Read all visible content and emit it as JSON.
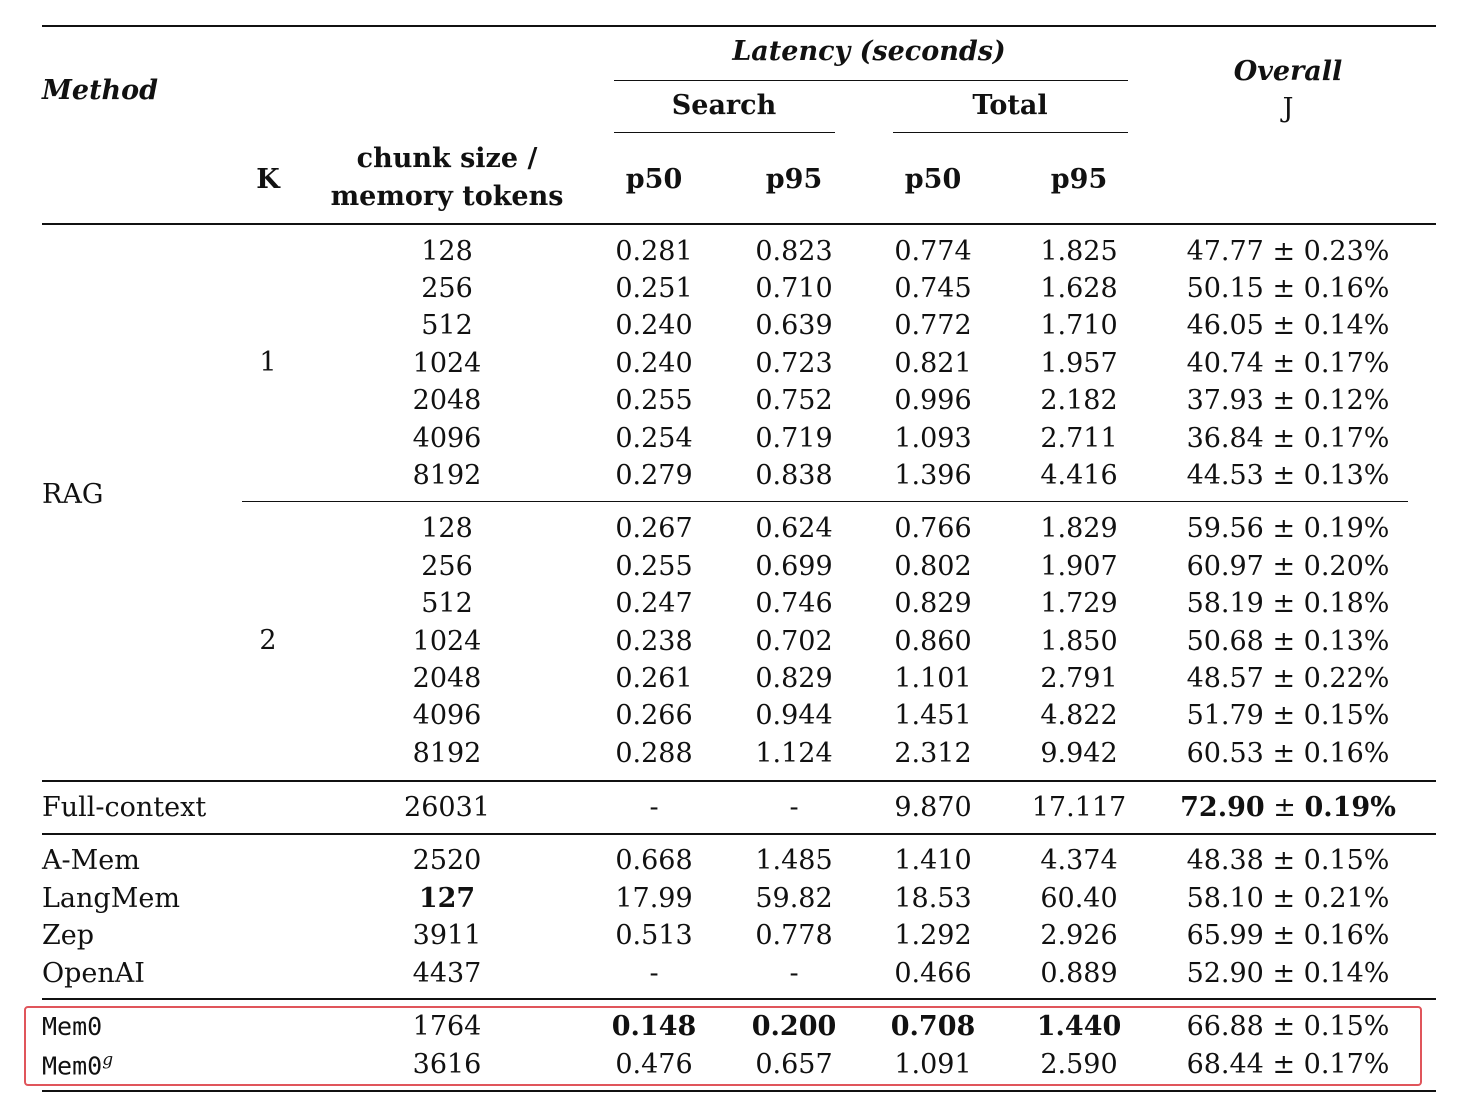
{
  "header": {
    "method": "Method",
    "latency": "Latency (seconds)",
    "search": "Search",
    "total": "Total",
    "overall": "Overall",
    "j": "J",
    "k": "K",
    "chunk_line1": "chunk size /",
    "chunk_line2": "memory tokens",
    "p50": "p50",
    "p95": "p95"
  },
  "groups": {
    "rag": "RAG",
    "k1": "1",
    "k2": "2"
  },
  "rows": [
    {
      "method": "",
      "size": "128",
      "sp50": "0.281",
      "sp95": "0.823",
      "tp50": "0.774",
      "tp95": "1.825",
      "j_val": "47.77",
      "pm": "±",
      "j_err": "0.23%"
    },
    {
      "method": "",
      "size": "256",
      "sp50": "0.251",
      "sp95": "0.710",
      "tp50": "0.745",
      "tp95": "1.628",
      "j_val": "50.15",
      "pm": "±",
      "j_err": "0.16%"
    },
    {
      "method": "",
      "size": "512",
      "sp50": "0.240",
      "sp95": "0.639",
      "tp50": "0.772",
      "tp95": "1.710",
      "j_val": "46.05",
      "pm": "±",
      "j_err": "0.14%"
    },
    {
      "method": "",
      "size": "1024",
      "sp50": "0.240",
      "sp95": "0.723",
      "tp50": "0.821",
      "tp95": "1.957",
      "j_val": "40.74",
      "pm": "±",
      "j_err": "0.17%"
    },
    {
      "method": "",
      "size": "2048",
      "sp50": "0.255",
      "sp95": "0.752",
      "tp50": "0.996",
      "tp95": "2.182",
      "j_val": "37.93",
      "pm": "±",
      "j_err": "0.12%"
    },
    {
      "method": "",
      "size": "4096",
      "sp50": "0.254",
      "sp95": "0.719",
      "tp50": "1.093",
      "tp95": "2.711",
      "j_val": "36.84",
      "pm": "±",
      "j_err": "0.17%"
    },
    {
      "method": "",
      "size": "8192",
      "sp50": "0.279",
      "sp95": "0.838",
      "tp50": "1.396",
      "tp95": "4.416",
      "j_val": "44.53",
      "pm": "±",
      "j_err": "0.13%"
    },
    {
      "method": "",
      "size": "128",
      "sp50": "0.267",
      "sp95": "0.624",
      "tp50": "0.766",
      "tp95": "1.829",
      "j_val": "59.56",
      "pm": "±",
      "j_err": "0.19%"
    },
    {
      "method": "",
      "size": "256",
      "sp50": "0.255",
      "sp95": "0.699",
      "tp50": "0.802",
      "tp95": "1.907",
      "j_val": "60.97",
      "pm": "±",
      "j_err": "0.20%"
    },
    {
      "method": "",
      "size": "512",
      "sp50": "0.247",
      "sp95": "0.746",
      "tp50": "0.829",
      "tp95": "1.729",
      "j_val": "58.19",
      "pm": "±",
      "j_err": "0.18%"
    },
    {
      "method": "",
      "size": "1024",
      "sp50": "0.238",
      "sp95": "0.702",
      "tp50": "0.860",
      "tp95": "1.850",
      "j_val": "50.68",
      "pm": "±",
      "j_err": "0.13%"
    },
    {
      "method": "",
      "size": "2048",
      "sp50": "0.261",
      "sp95": "0.829",
      "tp50": "1.101",
      "tp95": "2.791",
      "j_val": "48.57",
      "pm": "±",
      "j_err": "0.22%"
    },
    {
      "method": "",
      "size": "4096",
      "sp50": "0.266",
      "sp95": "0.944",
      "tp50": "1.451",
      "tp95": "4.822",
      "j_val": "51.79",
      "pm": "±",
      "j_err": "0.15%"
    },
    {
      "method": "",
      "size": "8192",
      "sp50": "0.288",
      "sp95": "1.124",
      "tp50": "2.312",
      "tp95": "9.942",
      "j_val": "60.53",
      "pm": "±",
      "j_err": "0.16%"
    },
    {
      "method": "Full-context",
      "size": "26031",
      "sp50": "-",
      "sp95": "-",
      "tp50": "9.870",
      "tp95": "17.117",
      "j_val": "72.90",
      "pm": "±",
      "j_err": "0.19%"
    },
    {
      "method": "A-Mem",
      "size": "2520",
      "sp50": "0.668",
      "sp95": "1.485",
      "tp50": "1.410",
      "tp95": "4.374",
      "j_val": "48.38",
      "pm": "±",
      "j_err": "0.15%"
    },
    {
      "method": "LangMem",
      "size": "127",
      "sp50": "17.99",
      "sp95": "59.82",
      "tp50": "18.53",
      "tp95": "60.40",
      "j_val": "58.10",
      "pm": "±",
      "j_err": "0.21%"
    },
    {
      "method": "Zep",
      "size": "3911",
      "sp50": "0.513",
      "sp95": "0.778",
      "tp50": "1.292",
      "tp95": "2.926",
      "j_val": "65.99",
      "pm": "±",
      "j_err": "0.16%"
    },
    {
      "method": "OpenAI",
      "size": "4437",
      "sp50": "-",
      "sp95": "-",
      "tp50": "0.466",
      "tp95": "0.889",
      "j_val": "52.90",
      "pm": "±",
      "j_err": "0.14%"
    },
    {
      "method": "Mem0",
      "size": "1764",
      "sp50": "0.148",
      "sp95": "0.200",
      "tp50": "0.708",
      "tp95": "1.440",
      "j_val": "66.88",
      "pm": "±",
      "j_err": "0.15%"
    },
    {
      "method": "Mem0",
      "method_sup": "g",
      "size": "3616",
      "sp50": "0.476",
      "sp95": "0.657",
      "tp50": "1.091",
      "tp95": "2.590",
      "j_val": "68.44",
      "pm": "±",
      "j_err": "0.17%"
    }
  ],
  "colors": {
    "text": "#111111",
    "rules": "#111111",
    "highlight_box": "#e0555b"
  }
}
